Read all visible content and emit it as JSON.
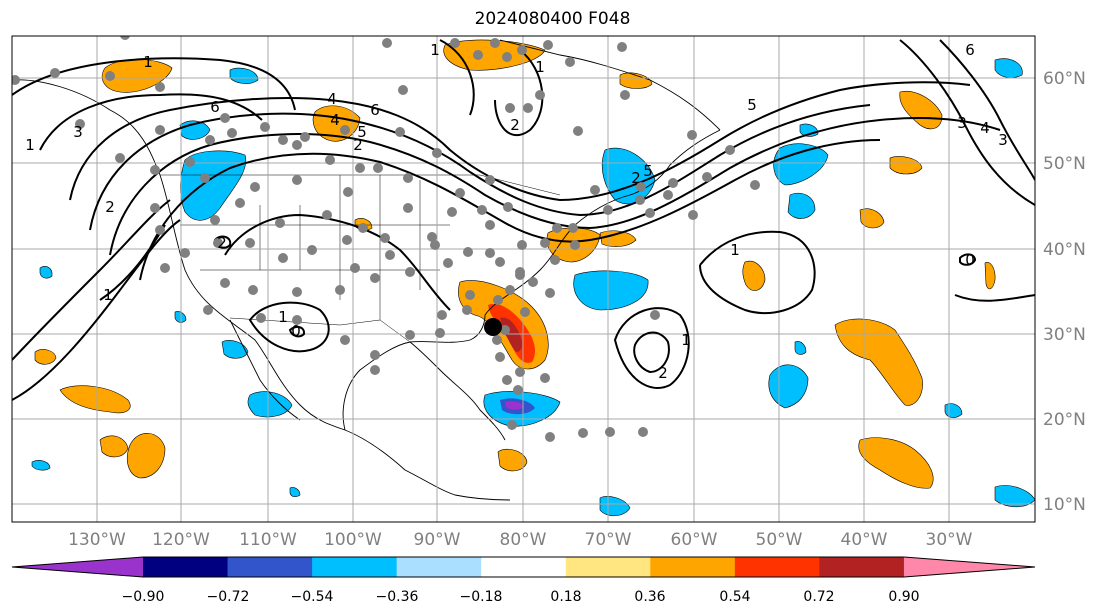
{
  "title": "2024080400 F048",
  "axes": {
    "lon_labels": [
      "130°W",
      "120°W",
      "110°W",
      "100°W",
      "90°W",
      "80°W",
      "70°W",
      "60°W",
      "50°W",
      "40°W",
      "30°W"
    ],
    "lat_labels": [
      "60°N",
      "50°N",
      "40°N",
      "30°N",
      "20°N",
      "10°N"
    ]
  },
  "colorbar": {
    "tick_labels": [
      "−0.90",
      "−0.72",
      "−0.54",
      "−0.36",
      "−0.18",
      "0.18",
      "0.36",
      "0.54",
      "0.72",
      "0.90"
    ],
    "colors": [
      "#9933cc",
      "#000080",
      "#3355cc",
      "#00bfff",
      "#aadfff",
      "#ffffff",
      "#ffe680",
      "#ffa500",
      "#ff3300",
      "#b22222",
      "#ff88aa"
    ]
  },
  "contour_labels": [
    "1",
    "1",
    "1",
    "1",
    "2",
    "2",
    "3",
    "4",
    "5",
    "6",
    "6",
    "6",
    "5",
    "4",
    "3",
    "2",
    "1",
    "2",
    "1",
    "2",
    "0",
    "0",
    "1",
    "3",
    "4",
    "5",
    "2",
    "1"
  ],
  "colors": {
    "land_fill": "#ffffff",
    "grid": "#a9a9a9",
    "station_dot": "#808080",
    "contour": "#000000"
  }
}
